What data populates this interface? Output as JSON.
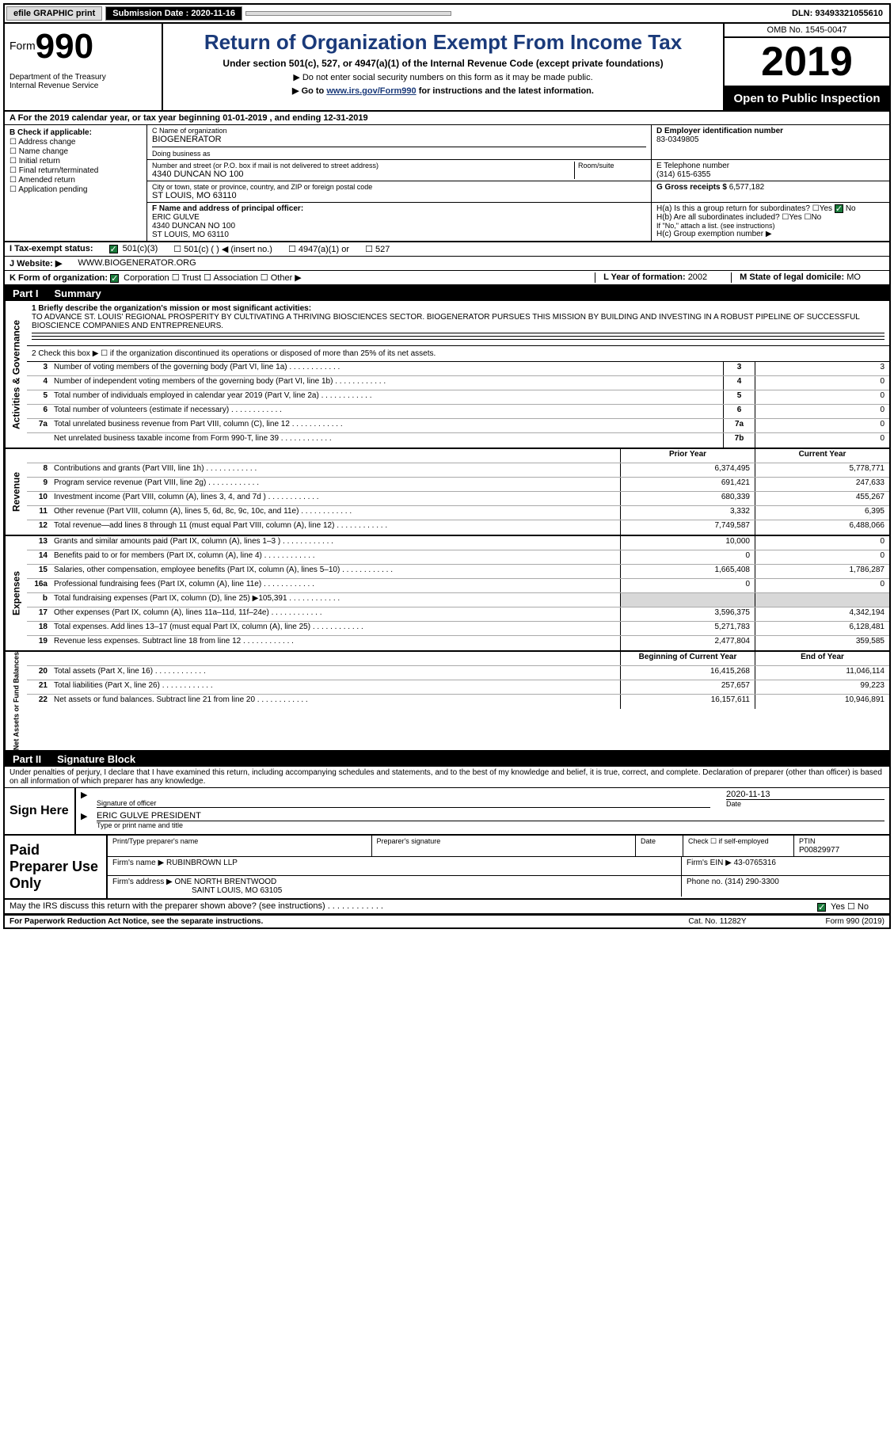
{
  "top": {
    "efile": "efile GRAPHIC print",
    "sub_label": "Submission Date : 2020-11-16",
    "dln": "DLN: 93493321055610"
  },
  "header": {
    "form_label": "Form",
    "form_num": "990",
    "dept": "Department of the Treasury\nInternal Revenue Service",
    "title": "Return of Organization Exempt From Income Tax",
    "subtitle": "Under section 501(c), 527, or 4947(a)(1) of the Internal Revenue Code (except private foundations)",
    "note1": "▶ Do not enter social security numbers on this form as it may be made public.",
    "note2_pre": "▶ Go to ",
    "note2_link": "www.irs.gov/Form990",
    "note2_post": " for instructions and the latest information.",
    "omb": "OMB No. 1545-0047",
    "year": "2019",
    "inspection": "Open to Public Inspection"
  },
  "row_a": "A For the 2019 calendar year, or tax year beginning 01-01-2019   , and ending 12-31-2019",
  "box_b": {
    "label": "B Check if applicable:",
    "items": [
      "Address change",
      "Name change",
      "Initial return",
      "Final return/terminated",
      "Amended return",
      "Application pending"
    ]
  },
  "box_c": {
    "name_label": "C Name of organization",
    "name": "BIOGENERATOR",
    "dba_label": "Doing business as",
    "street_label": "Number and street (or P.O. box if mail is not delivered to street address)",
    "street": "4340 DUNCAN NO 100",
    "room_label": "Room/suite",
    "city_label": "City or town, state or province, country, and ZIP or foreign postal code",
    "city": "ST LOUIS, MO  63110"
  },
  "box_d": {
    "label": "D Employer identification number",
    "value": "83-0349805"
  },
  "box_e": {
    "label": "E Telephone number",
    "value": "(314) 615-6355"
  },
  "box_g": {
    "label": "G Gross receipts $",
    "value": "6,577,182"
  },
  "box_f": {
    "label": "F  Name and address of principal officer:",
    "name": "ERIC GULVE",
    "addr1": "4340 DUNCAN NO 100",
    "addr2": "ST LOUIS, MO  63110"
  },
  "box_h": {
    "ha": "H(a)  Is this a group return for subordinates?",
    "hb": "H(b)  Are all subordinates included?",
    "hb_note": "If \"No,\" attach a list. (see instructions)",
    "hc": "H(c)  Group exemption number ▶"
  },
  "row_i": {
    "label": "I   Tax-exempt status:",
    "opts": [
      "501(c)(3)",
      "501(c) (  ) ◀ (insert no.)",
      "4947(a)(1) or",
      "527"
    ]
  },
  "row_j": {
    "label": "J   Website: ▶",
    "value": "WWW.BIOGENERATOR.ORG"
  },
  "row_k": {
    "label": "K Form of organization:",
    "opts": [
      "Corporation",
      "Trust",
      "Association",
      "Other ▶"
    ]
  },
  "row_l": {
    "label": "L Year of formation:",
    "value": "2002"
  },
  "row_m": {
    "label": "M State of legal domicile:",
    "value": "MO"
  },
  "part1": {
    "num": "Part I",
    "title": "Summary"
  },
  "summary": {
    "line1_label": "1  Briefly describe the organization's mission or most significant activities:",
    "line1_text": "TO ADVANCE ST. LOUIS' REGIONAL PROSPERITY BY CULTIVATING A THRIVING BIOSCIENCES SECTOR. BIOGENERATOR PURSUES THIS MISSION BY BUILDING AND INVESTING IN A ROBUST PIPELINE OF SUCCESSFUL BIOSCIENCE COMPANIES AND ENTREPRENEURS.",
    "line2": "2   Check this box ▶ ☐  if the organization discontinued its operations or disposed of more than 25% of its net assets."
  },
  "gov_lines": [
    {
      "n": "3",
      "d": "Number of voting members of the governing body (Part VI, line 1a)",
      "c": "3",
      "v": "3"
    },
    {
      "n": "4",
      "d": "Number of independent voting members of the governing body (Part VI, line 1b)",
      "c": "4",
      "v": "0"
    },
    {
      "n": "5",
      "d": "Total number of individuals employed in calendar year 2019 (Part V, line 2a)",
      "c": "5",
      "v": "0"
    },
    {
      "n": "6",
      "d": "Total number of volunteers (estimate if necessary)",
      "c": "6",
      "v": "0"
    },
    {
      "n": "7a",
      "d": "Total unrelated business revenue from Part VIII, column (C), line 12",
      "c": "7a",
      "v": "0"
    },
    {
      "n": "",
      "d": "Net unrelated business taxable income from Form 990-T, line 39",
      "c": "7b",
      "v": "0"
    }
  ],
  "hdr_prior": "Prior Year",
  "hdr_current": "Current Year",
  "revenue_label": "Revenue",
  "revenue": [
    {
      "n": "8",
      "d": "Contributions and grants (Part VIII, line 1h)",
      "p": "6,374,495",
      "c": "5,778,771"
    },
    {
      "n": "9",
      "d": "Program service revenue (Part VIII, line 2g)",
      "p": "691,421",
      "c": "247,633"
    },
    {
      "n": "10",
      "d": "Investment income (Part VIII, column (A), lines 3, 4, and 7d )",
      "p": "680,339",
      "c": "455,267"
    },
    {
      "n": "11",
      "d": "Other revenue (Part VIII, column (A), lines 5, 6d, 8c, 9c, 10c, and 11e)",
      "p": "3,332",
      "c": "6,395"
    },
    {
      "n": "12",
      "d": "Total revenue—add lines 8 through 11 (must equal Part VIII, column (A), line 12)",
      "p": "7,749,587",
      "c": "6,488,066"
    }
  ],
  "expenses_label": "Expenses",
  "expenses": [
    {
      "n": "13",
      "d": "Grants and similar amounts paid (Part IX, column (A), lines 1–3 )",
      "p": "10,000",
      "c": "0"
    },
    {
      "n": "14",
      "d": "Benefits paid to or for members (Part IX, column (A), line 4)",
      "p": "0",
      "c": "0"
    },
    {
      "n": "15",
      "d": "Salaries, other compensation, employee benefits (Part IX, column (A), lines 5–10)",
      "p": "1,665,408",
      "c": "1,786,287"
    },
    {
      "n": "16a",
      "d": "Professional fundraising fees (Part IX, column (A), line 11e)",
      "p": "0",
      "c": "0"
    },
    {
      "n": "b",
      "d": "Total fundraising expenses (Part IX, column (D), line 25) ▶105,391",
      "p": "",
      "c": "",
      "grey": true
    },
    {
      "n": "17",
      "d": "Other expenses (Part IX, column (A), lines 11a–11d, 11f–24e)",
      "p": "3,596,375",
      "c": "4,342,194"
    },
    {
      "n": "18",
      "d": "Total expenses. Add lines 13–17 (must equal Part IX, column (A), line 25)",
      "p": "5,271,783",
      "c": "6,128,481"
    },
    {
      "n": "19",
      "d": "Revenue less expenses. Subtract line 18 from line 12",
      "p": "2,477,804",
      "c": "359,585"
    }
  ],
  "netassets_label": "Net Assets or Fund Balances",
  "hdr_begin": "Beginning of Current Year",
  "hdr_end": "End of Year",
  "netassets": [
    {
      "n": "20",
      "d": "Total assets (Part X, line 16)",
      "p": "16,415,268",
      "c": "11,046,114"
    },
    {
      "n": "21",
      "d": "Total liabilities (Part X, line 26)",
      "p": "257,657",
      "c": "99,223"
    },
    {
      "n": "22",
      "d": "Net assets or fund balances. Subtract line 21 from line 20",
      "p": "16,157,611",
      "c": "10,946,891"
    }
  ],
  "gov_label": "Activities & Governance",
  "part2": {
    "num": "Part II",
    "title": "Signature Block"
  },
  "perjury": "Under penalties of perjury, I declare that I have examined this return, including accompanying schedules and statements, and to the best of my knowledge and belief, it is true, correct, and complete. Declaration of preparer (other than officer) is based on all information of which preparer has any knowledge.",
  "sign": {
    "here": "Sign Here",
    "sig_label": "Signature of officer",
    "date_label": "Date",
    "date": "2020-11-13",
    "name": "ERIC GULVE PRESIDENT",
    "name_label": "Type or print name and title"
  },
  "paid": {
    "title": "Paid Preparer Use Only",
    "print_label": "Print/Type preparer's name",
    "sig_label": "Preparer's signature",
    "date_label": "Date",
    "check_label": "Check ☐ if self-employed",
    "ptin_label": "PTIN",
    "ptin": "P00829977",
    "firm_name_label": "Firm's name    ▶",
    "firm_name": "RUBINBROWN LLP",
    "firm_ein_label": "Firm's EIN ▶",
    "firm_ein": "43-0765316",
    "firm_addr_label": "Firm's address ▶",
    "firm_addr1": "ONE NORTH BRENTWOOD",
    "firm_addr2": "SAINT LOUIS, MO  63105",
    "phone_label": "Phone no.",
    "phone": "(314) 290-3300"
  },
  "discuss": "May the IRS discuss this return with the preparer shown above? (see instructions)",
  "footer": {
    "left": "For Paperwork Reduction Act Notice, see the separate instructions.",
    "mid": "Cat. No. 11282Y",
    "right": "Form 990 (2019)"
  },
  "colors": {
    "title_blue": "#1a3a7a",
    "check_green": "#1a7a3a",
    "grey_fill": "#d8d8d8"
  }
}
